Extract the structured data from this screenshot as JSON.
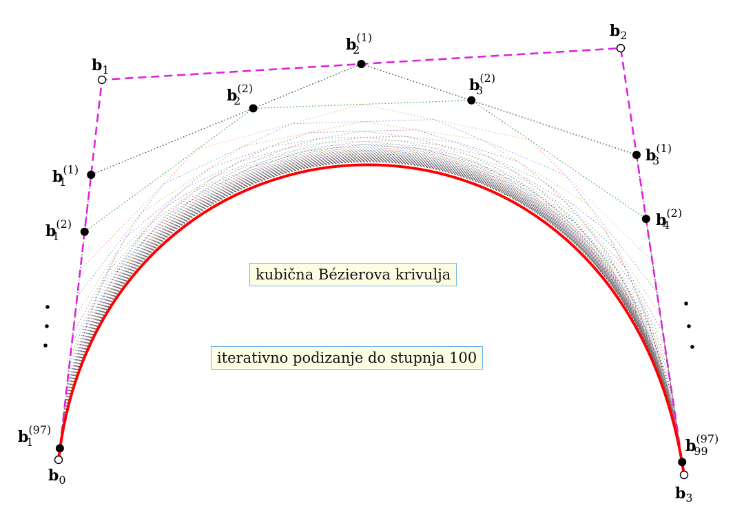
{
  "colors": {
    "control_polygon": "#e020e0",
    "curve": "#ff0000",
    "point_fill": "#000000",
    "box_background": "#fdfde4",
    "box_border": "#6cb6e6"
  },
  "annotations": {
    "curve_label": "kubična Bézierova krivulja",
    "process_label": "iterativno podizanje do stupnja 100"
  },
  "control_points": [
    {
      "name": "b",
      "sub": "0",
      "sup": ""
    },
    {
      "name": "b",
      "sub": "1",
      "sup": ""
    },
    {
      "name": "b",
      "sub": "2",
      "sup": ""
    },
    {
      "name": "b",
      "sub": "3",
      "sup": ""
    }
  ],
  "elevated_points": [
    {
      "name": "b",
      "sub": "1",
      "sup": "(1)"
    },
    {
      "name": "b",
      "sub": "2",
      "sup": "(1)"
    },
    {
      "name": "b",
      "sub": "3",
      "sup": "(1)"
    },
    {
      "name": "b",
      "sub": "1",
      "sup": "(2)"
    },
    {
      "name": "b",
      "sub": "2",
      "sup": "(2)"
    },
    {
      "name": "b",
      "sub": "3",
      "sup": "(2)"
    },
    {
      "name": "b",
      "sub": "4",
      "sup": "(2)"
    },
    {
      "name": "b",
      "sub": "1",
      "sup": "(97)"
    },
    {
      "name": "b",
      "sub": "99",
      "sup": "(97)"
    }
  ],
  "ellipsis_symbol": "⋮"
}
